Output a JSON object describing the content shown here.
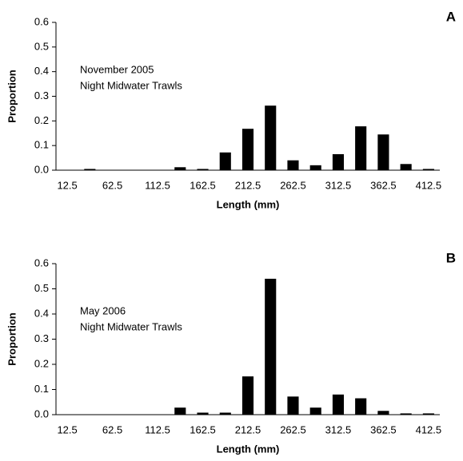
{
  "chart_data": [
    {
      "type": "bar",
      "title": "A",
      "annotations": [
        "November 2005",
        "Night Midwater Trawls"
      ],
      "x_label": "Length (mm)",
      "y_label": "Proportion",
      "categories": [
        "12.5",
        null,
        "62.5",
        null,
        "112.5",
        null,
        "162.5",
        null,
        "212.5",
        null,
        "262.5",
        null,
        "312.5",
        null,
        "362.5",
        null,
        "412.5"
      ],
      "values": [
        0,
        0.005,
        0,
        0,
        0,
        0.012,
        0.005,
        0.072,
        0.168,
        0.262,
        0.04,
        0.02,
        0.065,
        0.178,
        0.145,
        0.025,
        0.005
      ],
      "color": "#000000",
      "ylim": [
        0,
        0.6
      ],
      "yticks": [
        {
          "value": 0,
          "label": "0.0"
        },
        0.1,
        0.2,
        0.3,
        0.4,
        0.5,
        0.6
      ]
    },
    {
      "type": "bar",
      "title": "B",
      "annotations": [
        "May 2006",
        "Night Midwater Trawls"
      ],
      "x_label": "Length (mm)",
      "y_label": "Proportion",
      "categories": [
        "12.5",
        null,
        "62.5",
        null,
        "112.5",
        null,
        "162.5",
        null,
        "212.5",
        null,
        "262.5",
        null,
        "312.5",
        null,
        "362.5",
        null,
        "412.5"
      ],
      "values": [
        0,
        0,
        0,
        0,
        0,
        0.028,
        0.008,
        0.008,
        0.152,
        0.54,
        0.072,
        0.028,
        0.08,
        0.065,
        0.015,
        0.005,
        0.005
      ],
      "color": "#000000",
      "ylim": [
        0,
        0.6
      ],
      "yticks": [
        {
          "value": 0,
          "label": "0.0"
        },
        0.1,
        0.2,
        0.3,
        0.4,
        0.5,
        0.6
      ]
    }
  ]
}
